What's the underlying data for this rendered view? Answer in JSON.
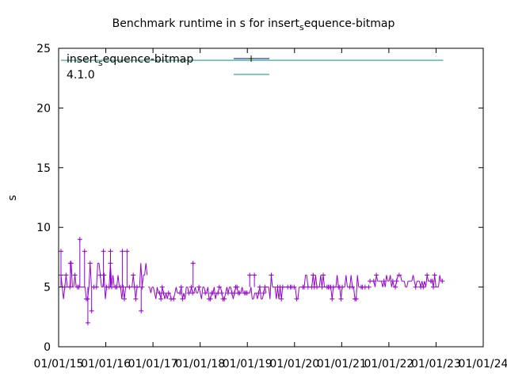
{
  "chart_data": {
    "type": "scatter",
    "title_main": "Benchmark runtime in s for insert",
    "title_sub": "s",
    "title_tail": "equence-bitmap",
    "ylabel": "s",
    "xlabel": "",
    "x_unit": "year (decimal)",
    "xlim": [
      2015.0,
      2024.0
    ],
    "ylim": [
      0,
      25
    ],
    "x_ticks": [
      {
        "value": 2015,
        "label": "01/01/15"
      },
      {
        "value": 2016,
        "label": "01/01/16"
      },
      {
        "value": 2017,
        "label": "01/01/17"
      },
      {
        "value": 2018,
        "label": "01/01/18"
      },
      {
        "value": 2019,
        "label": "01/01/19"
      },
      {
        "value": 2020,
        "label": "01/01/20"
      },
      {
        "value": 2021,
        "label": "01/01/21"
      },
      {
        "value": 2022,
        "label": "01/01/22"
      },
      {
        "value": 2023,
        "label": "01/01/23"
      },
      {
        "value": 2024,
        "label": "01/01/24"
      }
    ],
    "y_ticks": [
      {
        "value": 0,
        "label": "0"
      },
      {
        "value": 5,
        "label": "5"
      },
      {
        "value": 10,
        "label": "10"
      },
      {
        "value": 15,
        "label": "15"
      },
      {
        "value": 20,
        "label": "20"
      },
      {
        "value": 25,
        "label": "25"
      }
    ],
    "grid": false,
    "legend_position": "top-left",
    "series": [
      {
        "name_main": "insert",
        "name_sub": "s",
        "name_tail": "equence-bitmap",
        "color": "#9400d3",
        "marker": "plus",
        "segments": [
          {
            "x_start": 2015.05,
            "x_end": 2016.9,
            "low": 4,
            "high": 7,
            "base": 5
          },
          {
            "x_start": 2016.9,
            "x_end": 2019.4,
            "low": 4,
            "high": 5,
            "base": 4.5
          },
          {
            "x_start": 2019.4,
            "x_end": 2021.6,
            "low": 4,
            "high": 6,
            "base": 5
          },
          {
            "x_start": 2021.6,
            "x_end": 2023.15,
            "low": 5,
            "high": 6,
            "base": 5.5
          }
        ],
        "outliers": [
          {
            "x": 2015.05,
            "y": 8
          },
          {
            "x": 2015.25,
            "y": 7
          },
          {
            "x": 2015.45,
            "y": 9
          },
          {
            "x": 2015.55,
            "y": 8
          },
          {
            "x": 2015.62,
            "y": 2
          },
          {
            "x": 2015.7,
            "y": 3
          },
          {
            "x": 2015.95,
            "y": 8
          },
          {
            "x": 2016.1,
            "y": 8
          },
          {
            "x": 2016.35,
            "y": 8
          },
          {
            "x": 2016.45,
            "y": 8
          },
          {
            "x": 2016.75,
            "y": 3
          },
          {
            "x": 2017.85,
            "y": 7
          },
          {
            "x": 2019.05,
            "y": 6
          },
          {
            "x": 2019.15,
            "y": 6
          }
        ]
      },
      {
        "name": "4.1.0",
        "color": "#009e73",
        "marker": "line",
        "y": 24
      }
    ]
  }
}
